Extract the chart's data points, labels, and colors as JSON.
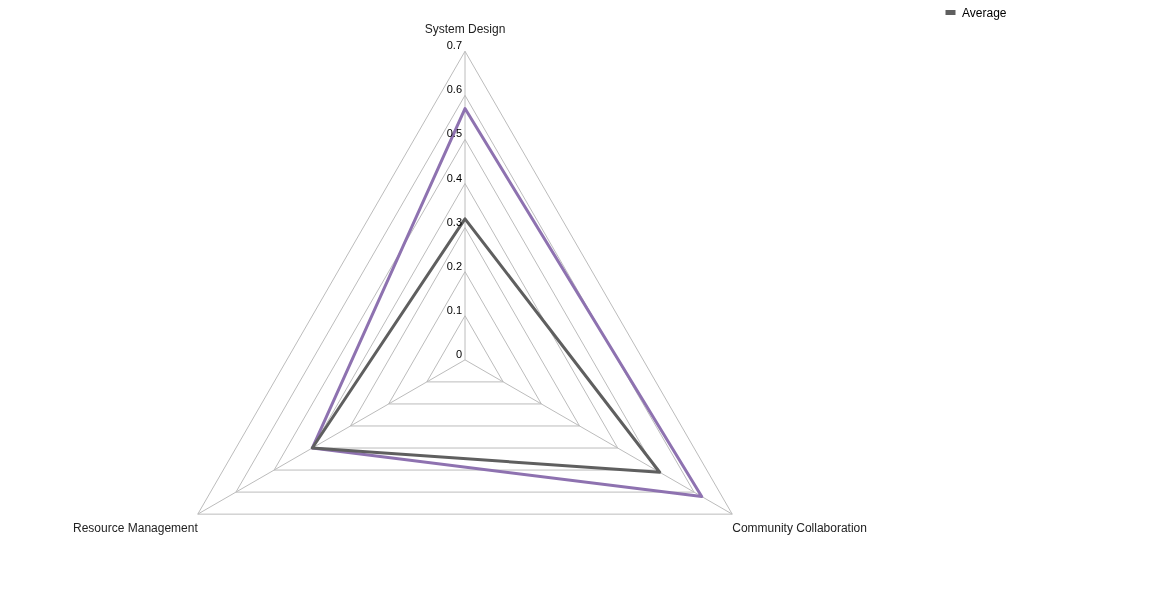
{
  "chart_data": {
    "type": "radar",
    "categories": [
      "System Design",
      "Community Collaboration",
      "Resource Management"
    ],
    "series": [
      {
        "color": "#8e72b0",
        "values": [
          0.57,
          0.62,
          0.4
        ]
      },
      {
        "name": "Average",
        "color": "#5f5f5f",
        "values": [
          0.32,
          0.51,
          0.4
        ]
      }
    ],
    "ylim": [
      0,
      0.7
    ],
    "yticks": [
      0,
      0.1,
      0.2,
      0.3,
      0.4,
      0.5,
      0.6,
      0.7
    ],
    "grid": true,
    "legend": "right",
    "line_style": "solid",
    "marker": "none"
  }
}
